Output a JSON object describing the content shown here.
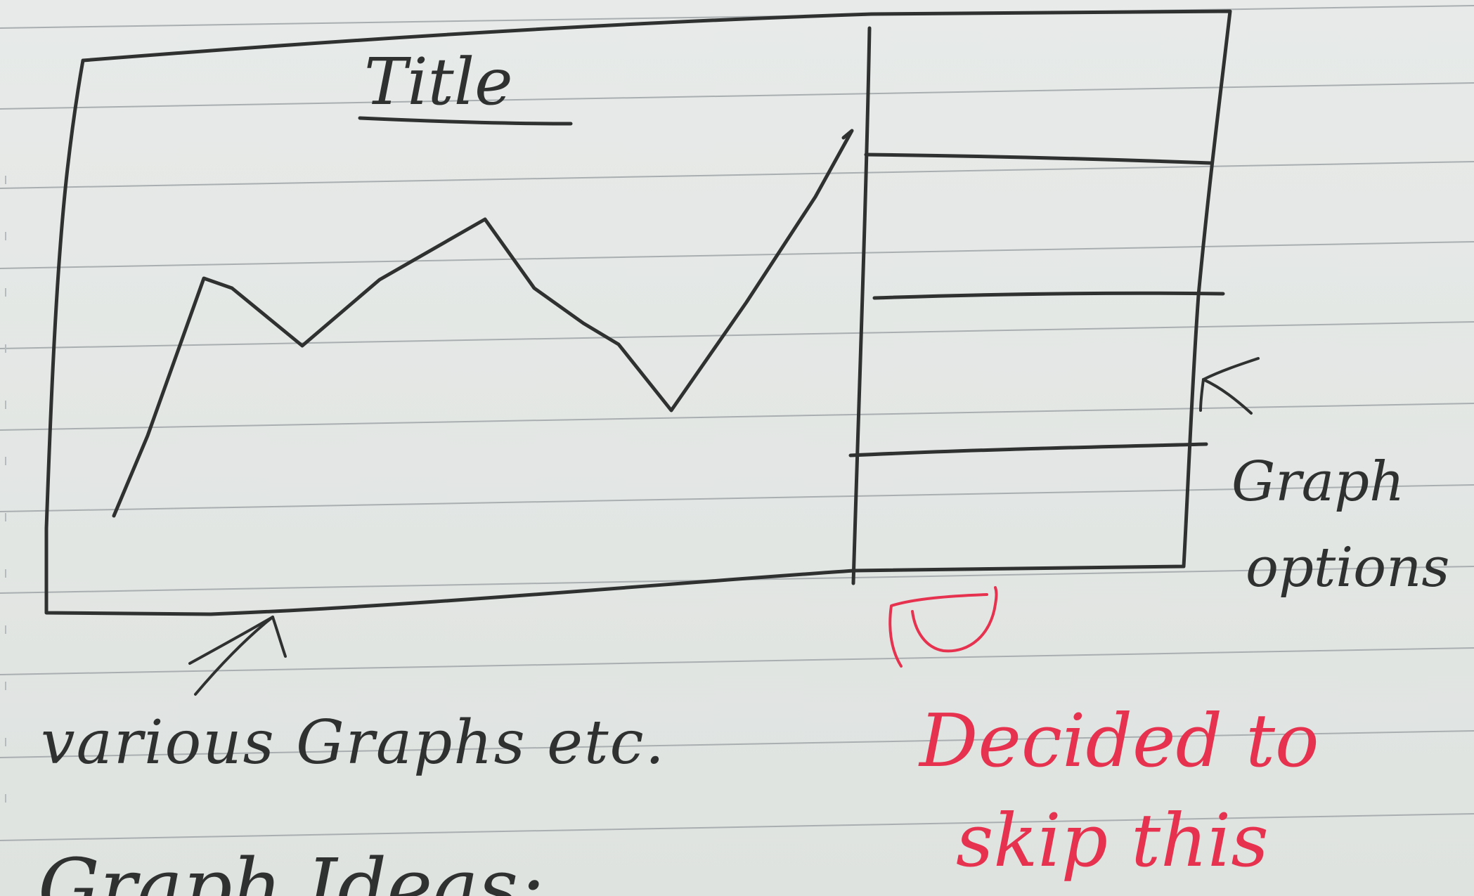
{
  "sketch": {
    "title": "Title",
    "bottom_note": "various Graphs etc.",
    "side_note_line1": "Graph",
    "side_note_line2": "options",
    "red_note_line1": "Decided to",
    "red_note_line2": "skip this",
    "bottom_cut_text": "Graph Ideas:"
  },
  "colors": {
    "ink": "#2f3131",
    "red_ink": "#e6324f",
    "paper": "#e2e6e3",
    "ruling": "#a9aeb0"
  }
}
